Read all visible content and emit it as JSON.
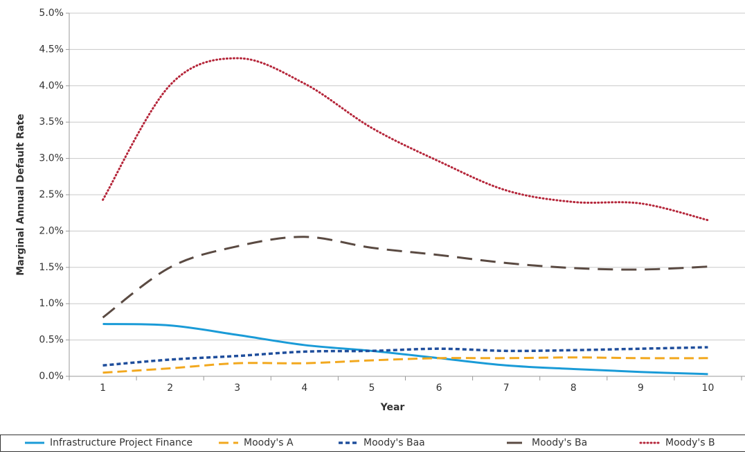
{
  "chart_data": {
    "type": "line",
    "x_label": "Year",
    "y_label": "Marginal Annual Default Rate",
    "categories": [
      "1",
      "2",
      "3",
      "4",
      "5",
      "6",
      "7",
      "8",
      "9",
      "10"
    ],
    "series": [
      {
        "name": "Infrastructure Project Finance",
        "color": "#1a9bd7",
        "values": [
          0.72,
          0.7,
          0.57,
          0.43,
          0.35,
          0.25,
          0.15,
          0.1,
          0.06,
          0.03
        ]
      },
      {
        "name": "Moody's A",
        "color": "#f2a81e",
        "values": [
          0.05,
          0.11,
          0.18,
          0.18,
          0.22,
          0.25,
          0.25,
          0.26,
          0.25,
          0.25
        ]
      },
      {
        "name": "Moody's Baa",
        "color": "#1f4e9c",
        "values": [
          0.15,
          0.23,
          0.28,
          0.34,
          0.35,
          0.38,
          0.35,
          0.36,
          0.38,
          0.4
        ]
      },
      {
        "name": "Moody's Ba",
        "color": "#5a4a42",
        "values": [
          0.81,
          1.5,
          1.79,
          1.92,
          1.77,
          1.67,
          1.56,
          1.49,
          1.47,
          1.51
        ]
      },
      {
        "name": "Moody's B",
        "color": "#b5263a",
        "values": [
          2.43,
          4.01,
          4.38,
          4.03,
          3.42,
          2.96,
          2.56,
          2.4,
          2.38,
          2.15
        ]
      }
    ],
    "ylim": [
      0,
      5
    ],
    "yticks": [
      {
        "value": 0,
        "label": "0.0%"
      },
      {
        "value": 0.5,
        "label": "0.5%"
      },
      {
        "value": 1,
        "label": "1.0%"
      },
      {
        "value": 1.5,
        "label": "1.5%"
      },
      {
        "value": 2,
        "label": "2.0%"
      },
      {
        "value": 2.5,
        "label": "2.5%"
      },
      {
        "value": 3,
        "label": "3.0%"
      },
      {
        "value": 3.5,
        "label": "3.5%"
      },
      {
        "value": 4,
        "label": "4.0%"
      },
      {
        "value": 4.5,
        "label": "4.5%"
      },
      {
        "value": 5,
        "label": "5.0%"
      }
    ],
    "grid": true,
    "legend": "bottom"
  }
}
